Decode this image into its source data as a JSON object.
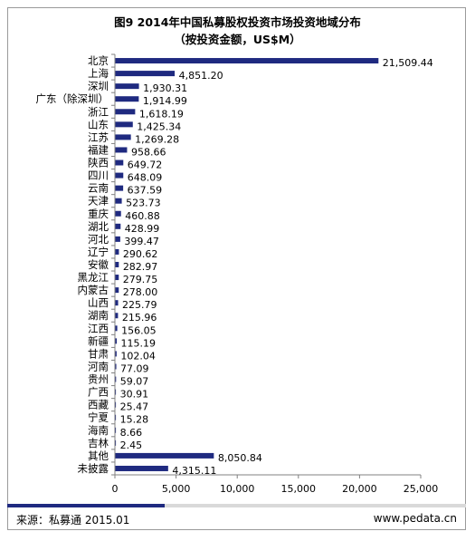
{
  "title": "图9 2014年中国私募股权投资市场投资地域分布",
  "subtitle": "（按投资金额，US$M）",
  "footer": {
    "source": "来源：私募通  2015.01",
    "website": "www.pedata.cn"
  },
  "colors": {
    "bar": "#1f2a80",
    "axis": "#808080",
    "footer_accent": "#1f2a80",
    "footer_bar": "#d9d9d9"
  },
  "chart_data": {
    "type": "bar",
    "orientation": "horizontal",
    "categories": [
      "北京",
      "上海",
      "深圳",
      "广东（除深圳）",
      "浙江",
      "山东",
      "江苏",
      "福建",
      "陕西",
      "四川",
      "云南",
      "天津",
      "重庆",
      "湖北",
      "河北",
      "辽宁",
      "安徽",
      "黑龙江",
      "内蒙古",
      "山西",
      "湖南",
      "江西",
      "新疆",
      "甘肃",
      "河南",
      "贵州",
      "广西",
      "西藏",
      "宁夏",
      "海南",
      "吉林",
      "其他",
      "未披露"
    ],
    "values": [
      21509.44,
      4851.2,
      1930.31,
      1914.99,
      1618.19,
      1425.34,
      1269.28,
      958.66,
      649.72,
      648.09,
      637.59,
      523.73,
      460.88,
      428.99,
      399.47,
      290.62,
      282.97,
      279.75,
      278.0,
      225.79,
      215.96,
      156.05,
      115.19,
      102.04,
      77.09,
      59.07,
      30.91,
      25.47,
      15.28,
      8.66,
      2.45,
      8050.84,
      4315.11
    ],
    "value_labels": [
      "21,509.44",
      "4,851.20",
      "1,930.31",
      "1,914.99",
      "1,618.19",
      "1,425.34",
      "1,269.28",
      "958.66",
      "649.72",
      "648.09",
      "637.59",
      "523.73",
      "460.88",
      "428.99",
      "399.47",
      "290.62",
      "282.97",
      "279.75",
      "278.00",
      "225.79",
      "215.96",
      "156.05",
      "115.19",
      "102.04",
      "77.09",
      "59.07",
      "30.91",
      "25.47",
      "15.28",
      "8.66",
      "2.45",
      "8,050.84",
      "4,315.11"
    ],
    "xlim": [
      0,
      25000
    ],
    "xticks": [
      0,
      5000,
      10000,
      15000,
      20000,
      25000
    ],
    "xtick_labels": [
      "0",
      "5,000",
      "10,000",
      "15,000",
      "20,000",
      "25,000"
    ],
    "grid": false,
    "legend": "none"
  }
}
